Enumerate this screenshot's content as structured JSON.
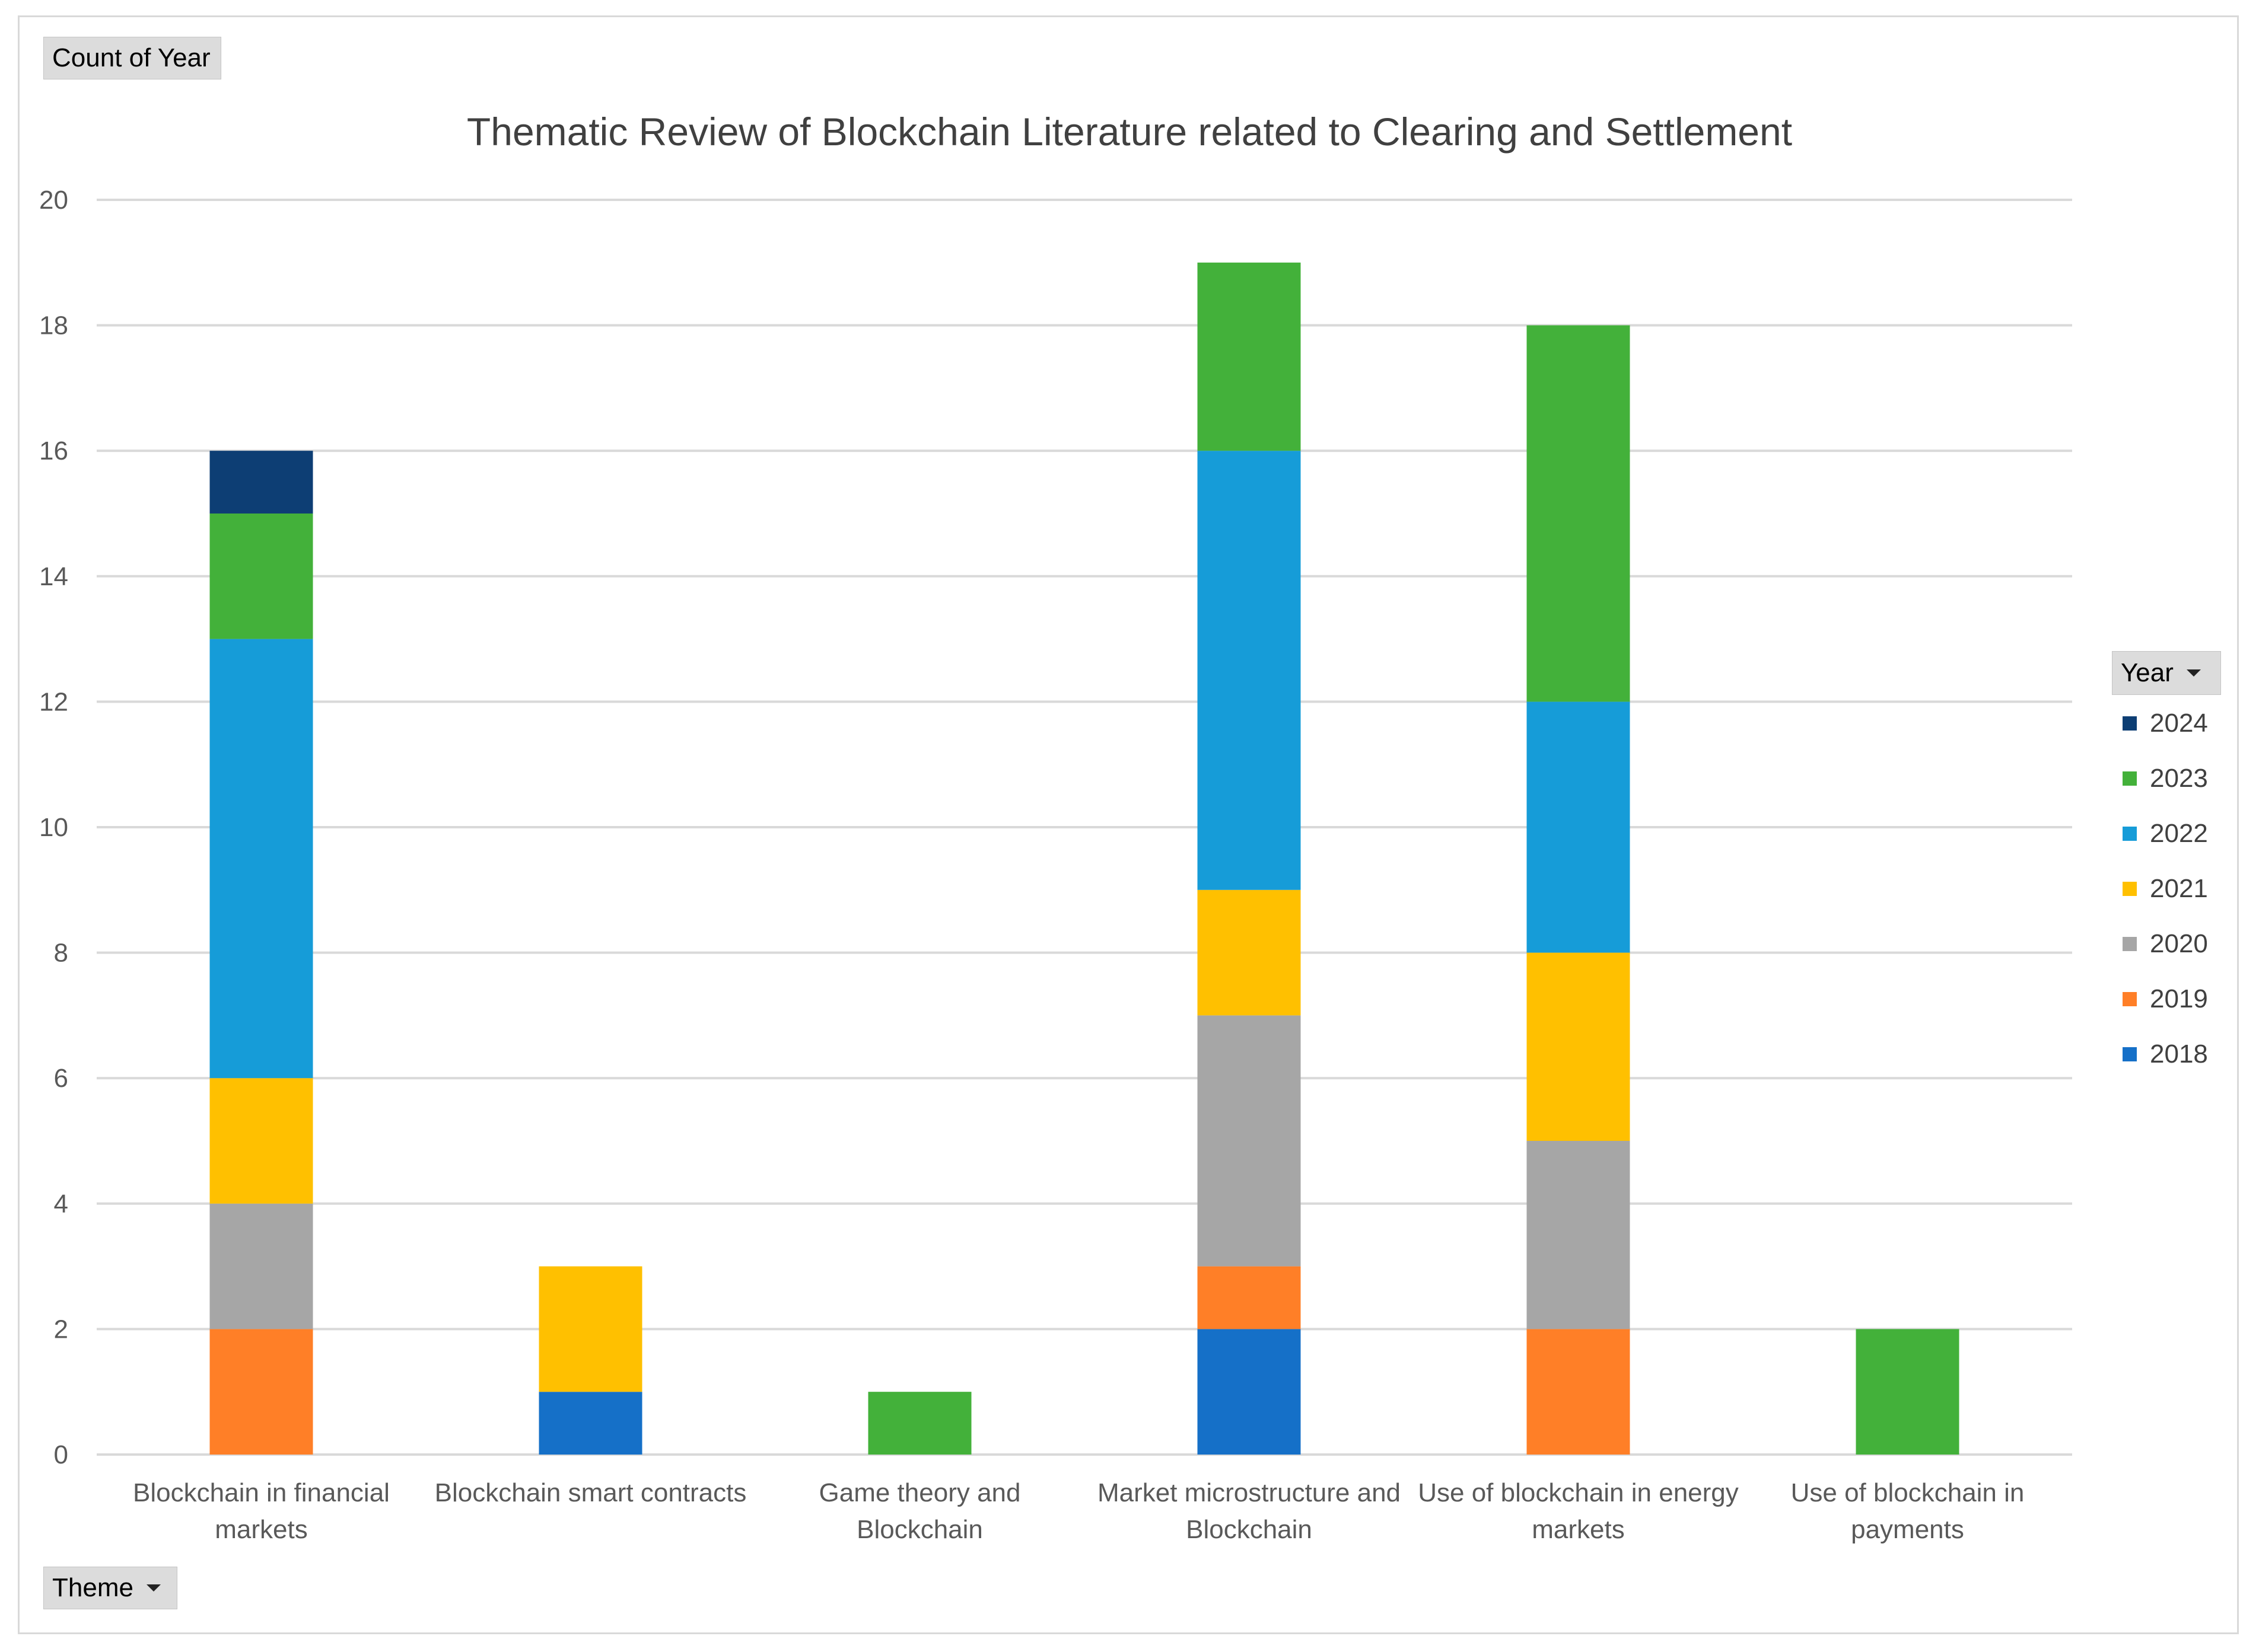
{
  "header": {
    "values_field": "Count of Year",
    "axis_field": "Theme",
    "legend_field": "Year"
  },
  "chart_data": {
    "type": "bar",
    "stacked": true,
    "title": "Thematic Review of Blockchain Literature related to Clearing and Settlement",
    "xlabel": "",
    "ylabel": "",
    "ylim": [
      0,
      20
    ],
    "yticks": [
      "0",
      "2",
      "4",
      "6",
      "8",
      "10",
      "12",
      "14",
      "16",
      "18",
      "20"
    ],
    "grid": true,
    "legend_position": "right",
    "legend_order": [
      "2024",
      "2023",
      "2022",
      "2021",
      "2020",
      "2019",
      "2018"
    ],
    "categories": [
      [
        "Blockchain in financial",
        "markets"
      ],
      [
        "Blockchain smart contracts"
      ],
      [
        "Game theory and",
        "Blockchain"
      ],
      [
        "Market microstructure and",
        "Blockchain"
      ],
      [
        "Use of blockchain in energy",
        "markets"
      ],
      [
        "Use of blockchain in",
        "payments"
      ]
    ],
    "series": [
      {
        "name": "2018",
        "color": "#1570C8",
        "values": [
          0,
          1,
          0,
          2,
          0,
          0
        ]
      },
      {
        "name": "2019",
        "color": "#FF7F27",
        "values": [
          2,
          0,
          0,
          1,
          2,
          0
        ]
      },
      {
        "name": "2020",
        "color": "#A6A6A6",
        "values": [
          2,
          0,
          0,
          4,
          3,
          0
        ]
      },
      {
        "name": "2021",
        "color": "#FFC000",
        "values": [
          2,
          2,
          0,
          2,
          3,
          0
        ]
      },
      {
        "name": "2022",
        "color": "#169CD8",
        "values": [
          7,
          0,
          0,
          7,
          4,
          0
        ]
      },
      {
        "name": "2023",
        "color": "#43B13A",
        "values": [
          2,
          0,
          1,
          3,
          6,
          2
        ]
      },
      {
        "name": "2024",
        "color": "#0D3E74",
        "values": [
          1,
          0,
          0,
          0,
          0,
          0
        ]
      }
    ]
  }
}
